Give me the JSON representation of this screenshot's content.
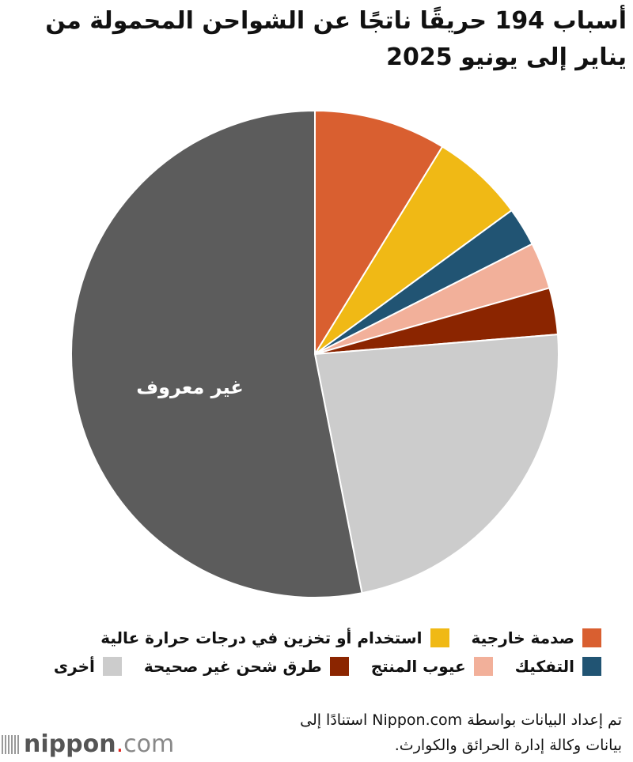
{
  "title": "أسباب 194 حريقًا ناتجًا عن الشواحن المحمولة من يناير إلى يونيو 2025",
  "chart_data": {
    "type": "pie",
    "title": "أسباب 194 حريقًا ناتجًا عن الشواحن المحمولة من يناير إلى يونيو 2025",
    "total": 194,
    "slices": [
      {
        "label": "صدمة خارجية",
        "value": 17,
        "color": "#d95f30"
      },
      {
        "label": "استخدام أو تخزين في درجات حرارة عالية",
        "value": 12,
        "color": "#f0b915"
      },
      {
        "label": "التفكيك",
        "value": 5,
        "color": "#215473"
      },
      {
        "label": "عيوب المنتج",
        "value": 6,
        "color": "#f2b09a"
      },
      {
        "label": "طرق شحن غير صحيحة",
        "value": 6,
        "color": "#8b2500"
      },
      {
        "label": "أخرى",
        "value": 45,
        "color": "#cccccc"
      },
      {
        "label": "غير معروف",
        "value": 103,
        "color": "#5c5c5c",
        "data_label": "غير معروف"
      }
    ],
    "legend_placement": "bottom"
  },
  "source": "تم إعداد البيانات بواسطة Nippon.com استنادًا إلى بيانات وكالة إدارة الحرائق والكوارث.",
  "logo": {
    "name": "nippon",
    "dot": ".",
    "com": "com"
  }
}
